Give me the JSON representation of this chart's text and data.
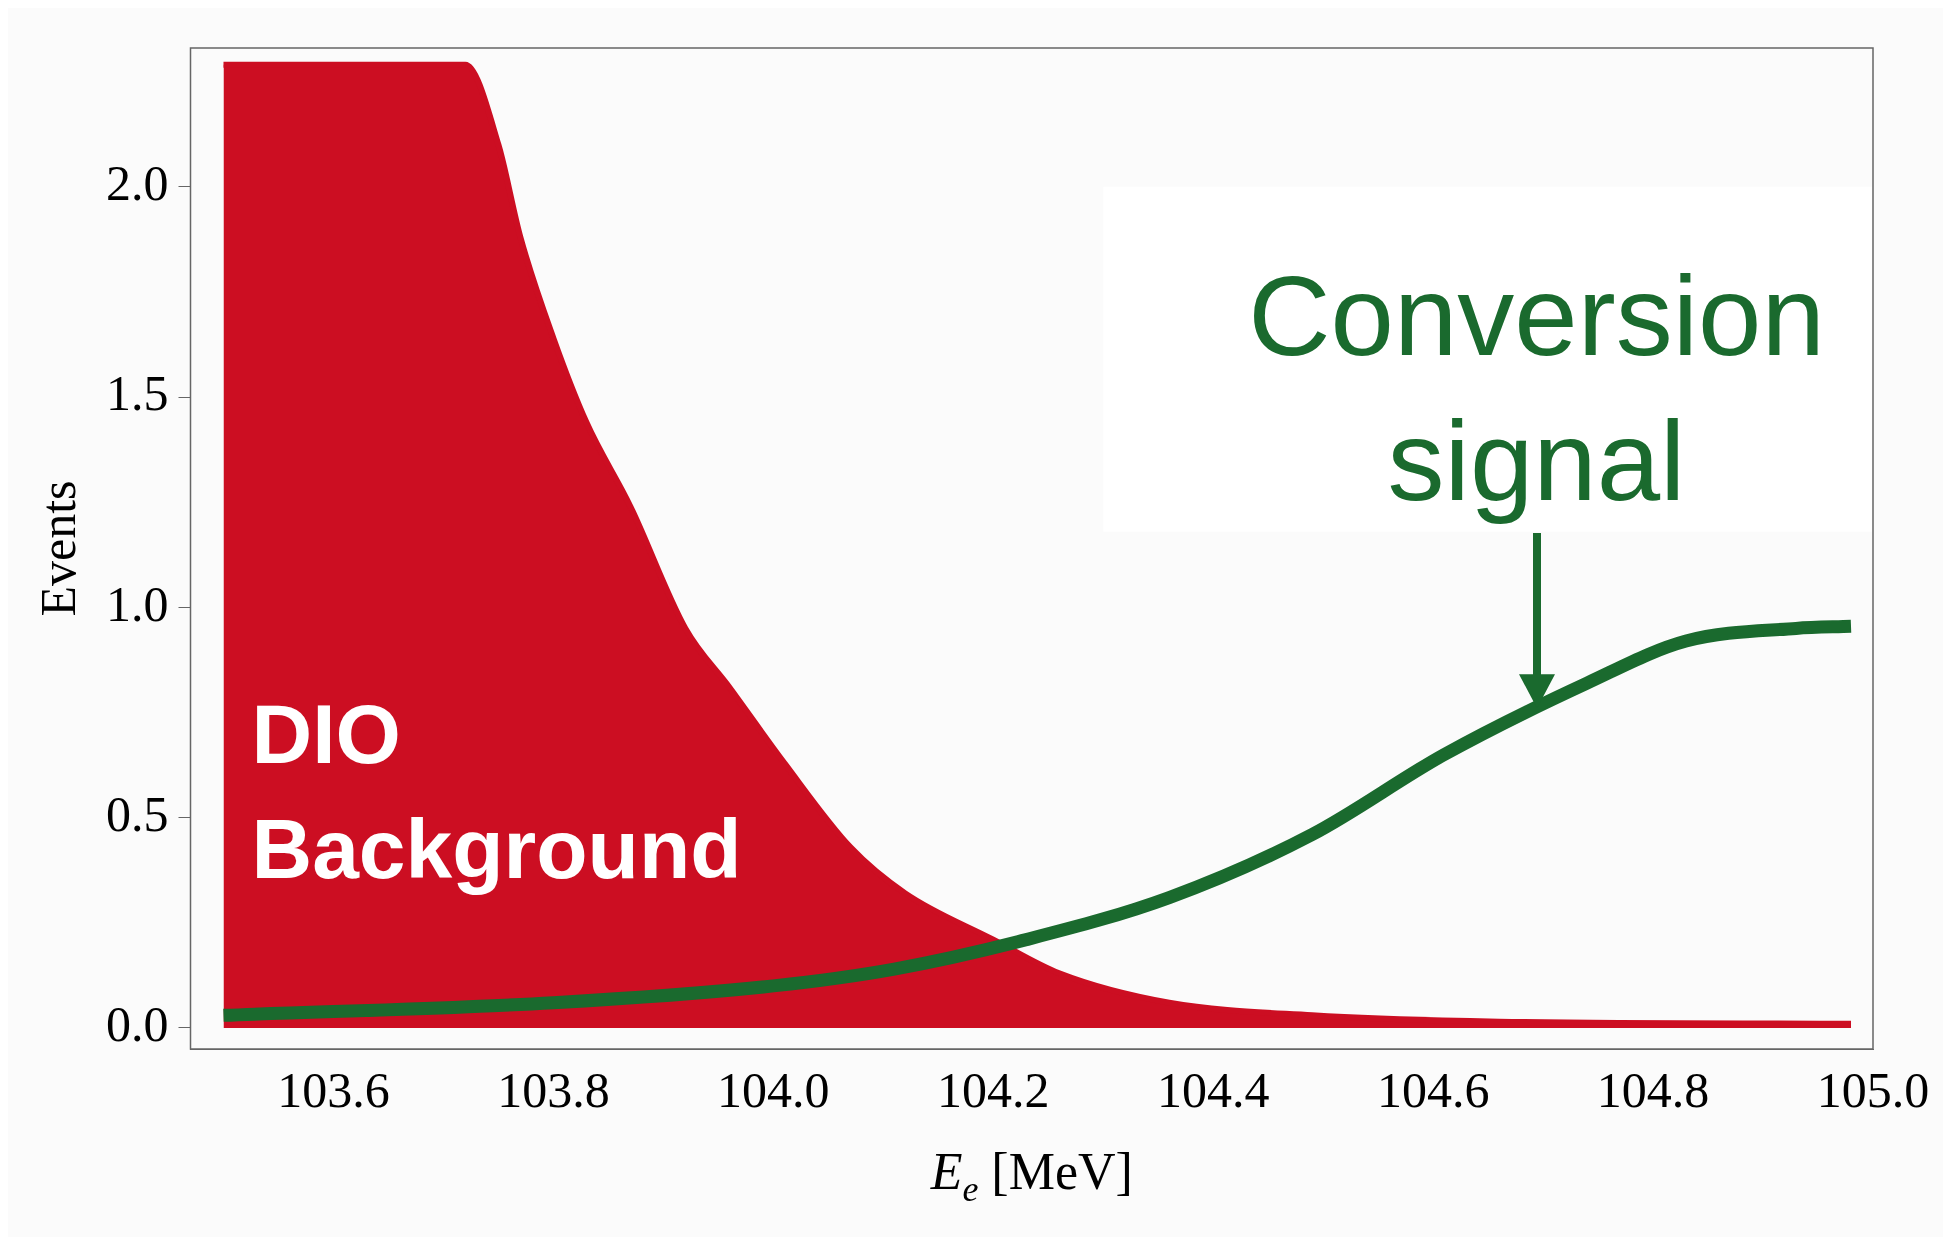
{
  "chart_data": {
    "type": "line",
    "xlabel": "E$_{e}$ [MeV]",
    "ylabel": "Events",
    "xlim": [
      103.47,
      105.0
    ],
    "ylim": [
      -0.05,
      2.33
    ],
    "xticks": [
      {
        "value": 103.6,
        "label": "103.6"
      },
      {
        "value": 103.8,
        "label": "103.8"
      },
      {
        "value": 104.0,
        "label": "104.0"
      },
      {
        "value": 104.2,
        "label": "104.2"
      },
      {
        "value": 104.4,
        "label": "104.4"
      },
      {
        "value": 104.6,
        "label": "104.6"
      },
      {
        "value": 104.8,
        "label": "104.8"
      },
      {
        "value": 105.0,
        "label": "105.0"
      }
    ],
    "yticks": [
      {
        "value": 0,
        "label": "0.0"
      },
      {
        "value": 0.5,
        "label": "0.5"
      },
      {
        "value": 1.0,
        "label": "1.0"
      },
      {
        "value": 1.5,
        "label": "1.5"
      },
      {
        "value": 2.0,
        "label": "2.0"
      }
    ],
    "grid": false,
    "legend": false,
    "marker": "none",
    "line_style": "solid",
    "series": [
      {
        "name": "DIO Background",
        "type": "area",
        "color": "#cc0e22",
        "x": [
          103.5,
          103.72,
          103.75,
          103.77,
          103.8,
          103.83,
          103.87,
          103.92,
          103.96,
          104.01,
          104.07,
          104.12,
          104.2,
          104.26,
          104.36,
          104.49,
          104.66,
          104.98
        ],
        "values": [
          2.29,
          2.29,
          2.1,
          1.88,
          1.64,
          1.44,
          1.24,
          0.95,
          0.81,
          0.63,
          0.43,
          0.32,
          0.21,
          0.13,
          0.06,
          0.03,
          0.015,
          0.01
        ]
      },
      {
        "name": "Conversion signal",
        "type": "line",
        "color": "#1a6a2e",
        "x": [
          103.5,
          103.8,
          104.0,
          104.11,
          104.23,
          104.36,
          104.49,
          104.61,
          104.74,
          104.83,
          104.93,
          104.98
        ],
        "values": [
          0.03,
          0.06,
          0.1,
          0.14,
          0.21,
          0.31,
          0.46,
          0.65,
          0.82,
          0.92,
          0.95,
          0.955
        ]
      }
    ]
  }
}
